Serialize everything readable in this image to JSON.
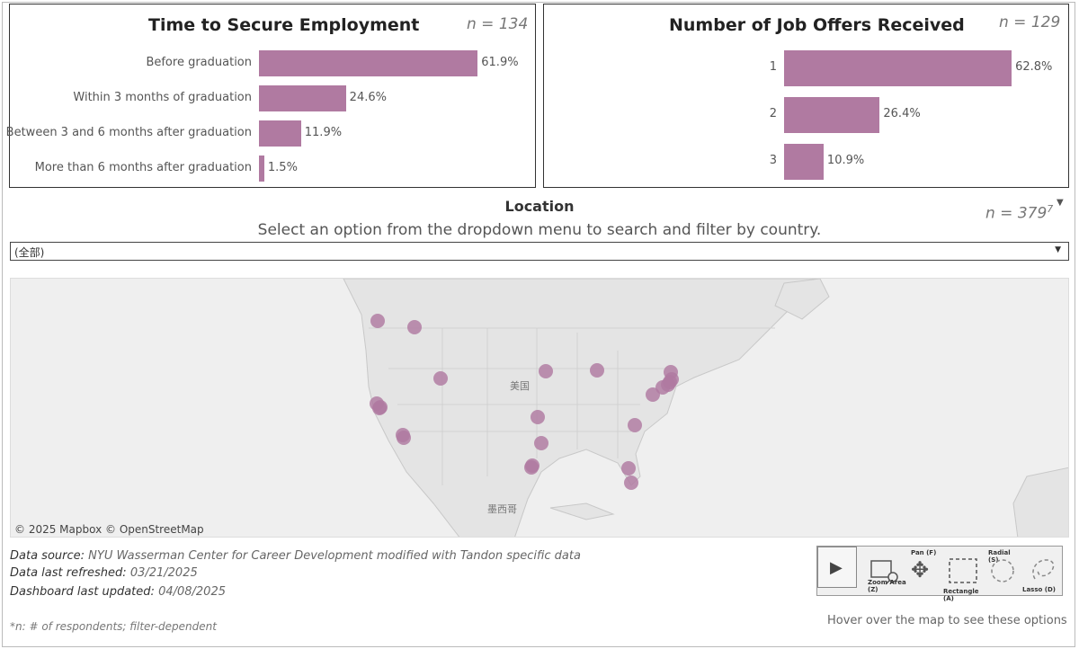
{
  "time_panel": {
    "title": "Time to Secure Employment",
    "n": "n = 134",
    "chart_data": {
      "type": "bar",
      "orientation": "horizontal",
      "categories": [
        "Before graduation",
        "Within 3 months of graduation",
        "Between 3 and 6 months after graduation",
        "More than 6 months after graduation"
      ],
      "values": [
        61.9,
        24.6,
        11.9,
        1.5
      ],
      "value_labels": [
        "61.9%",
        "24.6%",
        "11.9%",
        "1.5%"
      ],
      "color": "#b07aa1"
    }
  },
  "offers_panel": {
    "title": "Number of Job Offers Received",
    "n": "n = 129",
    "chart_data": {
      "type": "bar",
      "orientation": "horizontal",
      "categories": [
        "1",
        "2",
        "3"
      ],
      "values": [
        62.8,
        26.4,
        10.9
      ],
      "value_labels": [
        "62.8%",
        "26.4%",
        "10.9%"
      ],
      "color": "#b07aa1"
    }
  },
  "location": {
    "title": "Location",
    "subtitle": "Select an option from the dropdown menu to search and filter by country.",
    "n": "n = 379",
    "n_sup": "7",
    "menu_icon": "dropdown-triangle-icon",
    "dropdown_value": "(全部)",
    "map_labels": {
      "country_us": "美国",
      "country_mexico": "墨西哥"
    },
    "map_credit": "© 2025 Mapbox  © OpenStreetMap",
    "marker_color": "#b07aa1"
  },
  "footer": {
    "source_label": "Data source:",
    "source_value": "NYU Wasserman Center for Career Development modified with Tandon specific data",
    "refreshed_label": "Data last refreshed:",
    "refreshed_value": "03/21/2025",
    "updated_label": "Dashboard last updated:",
    "updated_value": "04/08/2025",
    "footnote": "*n: # of respondents; filter-dependent"
  },
  "toolbar": {
    "play_icon": "play-icon",
    "zoom_label": "Zoom Area (Z)",
    "pan_label": "Pan (F)",
    "rect_label": "Rectangle (A)",
    "radial_label": "Radial (S)",
    "lasso_label": "Lasso (D)",
    "hint": "Hover over the map to see these options"
  }
}
